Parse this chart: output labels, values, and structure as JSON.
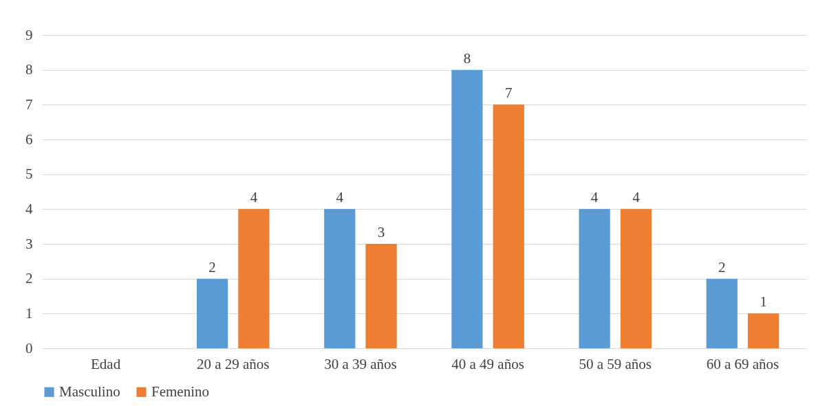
{
  "chart_data": {
    "type": "bar",
    "categories": [
      "Edad",
      "20 a 29 años",
      "30 a 39 años",
      "40 a 49 años",
      "50 a 59 años",
      "60 a 69 años"
    ],
    "series": [
      {
        "name": "Masculino",
        "color": "#5b9bd5",
        "values": [
          null,
          2,
          4,
          8,
          4,
          2
        ]
      },
      {
        "name": "Femenino",
        "color": "#ed7d31",
        "values": [
          null,
          4,
          3,
          7,
          4,
          1
        ]
      }
    ],
    "ylim": [
      0,
      9
    ],
    "yticks": [
      0,
      1,
      2,
      3,
      4,
      5,
      6,
      7,
      8,
      9
    ],
    "grid": "y",
    "legend": "bottom",
    "data_labels": true
  }
}
